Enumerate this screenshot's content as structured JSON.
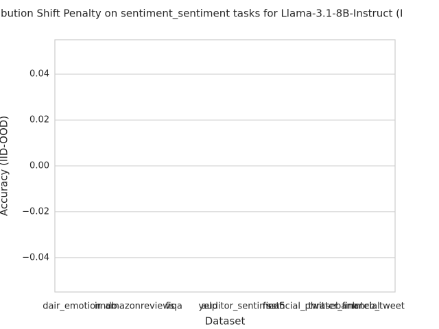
{
  "chart_data": {
    "type": "bar",
    "title": "bution Shift Penalty on sentiment_sentiment tasks for Llama-3.1-8B-Instruct (I",
    "x_label": "Dataset",
    "y_label": "Accuracy (IID-OOD)",
    "categories": [
      "dair_emotion",
      "imdb",
      "amazonreviews",
      "fiqa",
      "yelp",
      "auditor_sentiment",
      "sst5",
      "financial_phrasebank",
      "twitter_financial",
      "mteb_tweet"
    ],
    "values": [
      null,
      null,
      null,
      null,
      null,
      null,
      null,
      null,
      null,
      null
    ],
    "color": "#4c72b0",
    "ylim": [
      -0.055,
      0.055
    ],
    "yticks": [
      {
        "value": -0.04,
        "label": "−0.04"
      },
      {
        "value": -0.02,
        "label": "−0.02"
      },
      {
        "value": 0,
        "label": "0.00"
      },
      0.02,
      0.04
    ],
    "grid": true
  }
}
